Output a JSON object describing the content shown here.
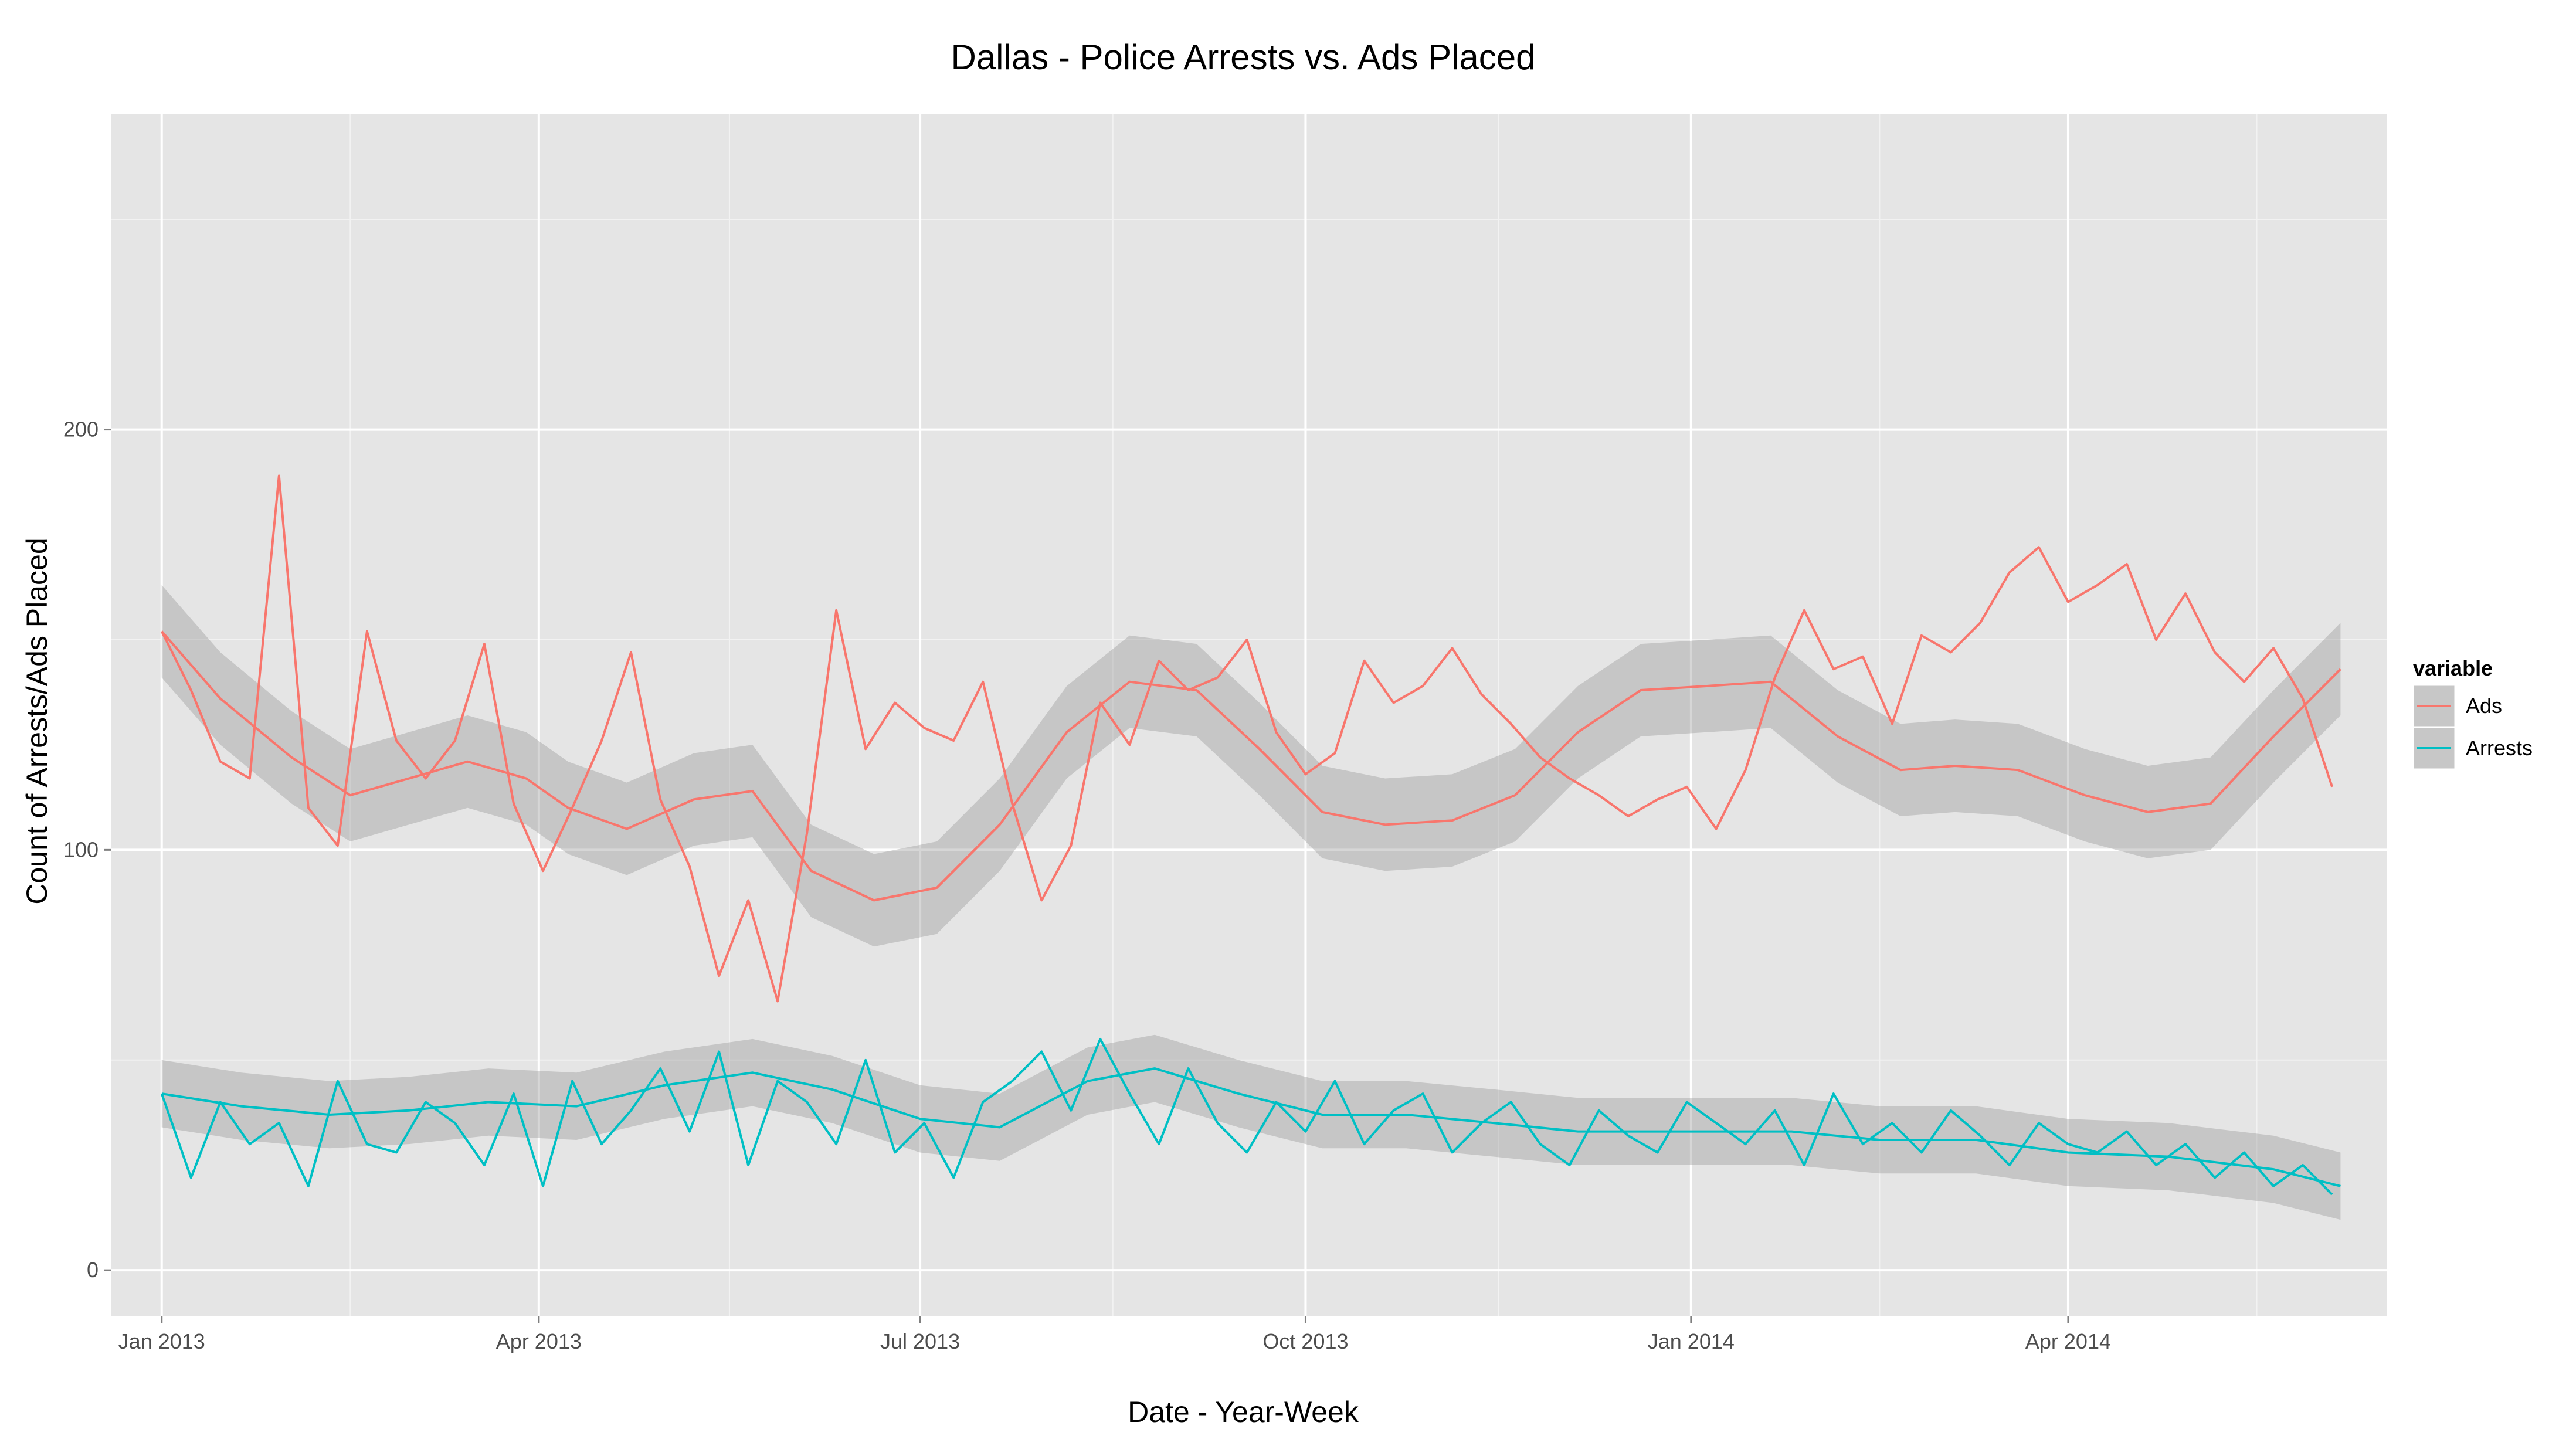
{
  "chart_data": {
    "type": "line",
    "title": "Dallas - Police Arrests vs. Ads Placed",
    "xlabel": "Date - Year-Week",
    "ylabel": "Count of Arrests/Ads Placed",
    "x_range": [
      "2012-12-20",
      "2014-06-16"
    ],
    "ylim": [
      -11,
      275
    ],
    "y_ticks": [
      0,
      100,
      200
    ],
    "x_ticks": [
      {
        "date": "2013-01-01",
        "label": "Jan 2013"
      },
      {
        "date": "2013-04-01",
        "label": "Apr 2013"
      },
      {
        "date": "2013-07-01",
        "label": "Jul 2013"
      },
      {
        "date": "2013-10-01",
        "label": "Oct 2013"
      },
      {
        "date": "2014-01-01",
        "label": "Jan 2014"
      },
      {
        "date": "2014-04-01",
        "label": "Apr 2014"
      }
    ],
    "grid": true,
    "background": "#e5e5e5",
    "smooth_band_color": "#999999",
    "legend": {
      "title": "variable",
      "placement": "right"
    },
    "series": [
      {
        "name": "Ads",
        "color": "#F8766D",
        "points": [
          [
            "2013-01-01",
            152
          ],
          [
            "2013-01-08",
            138
          ],
          [
            "2013-01-15",
            121
          ],
          [
            "2013-01-22",
            117
          ],
          [
            "2013-01-29",
            189
          ],
          [
            "2013-02-05",
            110
          ],
          [
            "2013-02-12",
            101
          ],
          [
            "2013-02-19",
            152
          ],
          [
            "2013-02-26",
            126
          ],
          [
            "2013-03-05",
            117
          ],
          [
            "2013-03-12",
            126
          ],
          [
            "2013-03-19",
            149
          ],
          [
            "2013-03-26",
            111
          ],
          [
            "2013-04-02",
            95
          ],
          [
            "2013-04-09",
            110
          ],
          [
            "2013-04-16",
            126
          ],
          [
            "2013-04-23",
            147
          ],
          [
            "2013-04-30",
            112
          ],
          [
            "2013-05-07",
            96
          ],
          [
            "2013-05-14",
            70
          ],
          [
            "2013-05-21",
            88
          ],
          [
            "2013-05-28",
            64
          ],
          [
            "2013-06-04",
            104
          ],
          [
            "2013-06-11",
            157
          ],
          [
            "2013-06-18",
            124
          ],
          [
            "2013-06-25",
            135
          ],
          [
            "2013-07-02",
            129
          ],
          [
            "2013-07-09",
            126
          ],
          [
            "2013-07-16",
            140
          ],
          [
            "2013-07-23",
            111
          ],
          [
            "2013-07-30",
            88
          ],
          [
            "2013-08-06",
            101
          ],
          [
            "2013-08-13",
            135
          ],
          [
            "2013-08-20",
            125
          ],
          [
            "2013-08-27",
            145
          ],
          [
            "2013-09-03",
            138
          ],
          [
            "2013-09-10",
            141
          ],
          [
            "2013-09-17",
            150
          ],
          [
            "2013-09-24",
            128
          ],
          [
            "2013-10-01",
            118
          ],
          [
            "2013-10-08",
            123
          ],
          [
            "2013-10-15",
            145
          ],
          [
            "2013-10-22",
            135
          ],
          [
            "2013-10-29",
            139
          ],
          [
            "2013-11-05",
            148
          ],
          [
            "2013-11-12",
            137
          ],
          [
            "2013-11-19",
            130
          ],
          [
            "2013-11-26",
            122
          ],
          [
            "2013-12-03",
            117
          ],
          [
            "2013-12-10",
            113
          ],
          [
            "2013-12-17",
            108
          ],
          [
            "2013-12-24",
            112
          ],
          [
            "2013-12-31",
            115
          ],
          [
            "2014-01-07",
            105
          ],
          [
            "2014-01-14",
            119
          ],
          [
            "2014-01-21",
            141
          ],
          [
            "2014-01-28",
            157
          ],
          [
            "2014-02-04",
            143
          ],
          [
            "2014-02-11",
            146
          ],
          [
            "2014-02-18",
            130
          ],
          [
            "2014-02-25",
            151
          ],
          [
            "2014-03-04",
            147
          ],
          [
            "2014-03-11",
            154
          ],
          [
            "2014-03-18",
            166
          ],
          [
            "2014-03-25",
            172
          ],
          [
            "2014-04-01",
            159
          ],
          [
            "2014-04-08",
            163
          ],
          [
            "2014-04-15",
            168
          ],
          [
            "2014-04-22",
            150
          ],
          [
            "2014-04-29",
            161
          ],
          [
            "2014-05-06",
            147
          ],
          [
            "2014-05-13",
            140
          ],
          [
            "2014-05-20",
            148
          ],
          [
            "2014-05-27",
            136
          ],
          [
            "2014-06-03",
            115
          ]
        ],
        "smooth": [
          [
            "2013-01-01",
            152
          ],
          [
            "2013-01-15",
            136
          ],
          [
            "2013-02-01",
            122
          ],
          [
            "2013-02-15",
            113
          ],
          [
            "2013-03-01",
            117
          ],
          [
            "2013-03-15",
            121
          ],
          [
            "2013-03-29",
            117
          ],
          [
            "2013-04-08",
            110
          ],
          [
            "2013-04-22",
            105
          ],
          [
            "2013-05-08",
            112
          ],
          [
            "2013-05-22",
            114
          ],
          [
            "2013-06-05",
            95
          ],
          [
            "2013-06-20",
            88
          ],
          [
            "2013-07-05",
            91
          ],
          [
            "2013-07-20",
            106
          ],
          [
            "2013-08-05",
            128
          ],
          [
            "2013-08-20",
            140
          ],
          [
            "2013-09-05",
            138
          ],
          [
            "2013-09-20",
            124
          ],
          [
            "2013-10-05",
            109
          ],
          [
            "2013-10-20",
            106
          ],
          [
            "2013-11-05",
            107
          ],
          [
            "2013-11-20",
            113
          ],
          [
            "2013-12-05",
            128
          ],
          [
            "2013-12-20",
            138
          ],
          [
            "2014-01-05",
            139
          ],
          [
            "2014-01-20",
            140
          ],
          [
            "2014-02-05",
            127
          ],
          [
            "2014-02-20",
            119
          ],
          [
            "2014-03-05",
            120
          ],
          [
            "2014-03-20",
            119
          ],
          [
            "2014-04-05",
            113
          ],
          [
            "2014-04-20",
            109
          ],
          [
            "2014-05-05",
            111
          ],
          [
            "2014-05-20",
            127
          ],
          [
            "2014-06-05",
            143
          ]
        ],
        "band_halfwidth": 11
      },
      {
        "name": "Arrests",
        "color": "#00BFC4",
        "points": [
          [
            "2013-01-01",
            42
          ],
          [
            "2013-01-08",
            22
          ],
          [
            "2013-01-15",
            40
          ],
          [
            "2013-01-22",
            30
          ],
          [
            "2013-01-29",
            35
          ],
          [
            "2013-02-05",
            20
          ],
          [
            "2013-02-12",
            45
          ],
          [
            "2013-02-19",
            30
          ],
          [
            "2013-02-26",
            28
          ],
          [
            "2013-03-05",
            40
          ],
          [
            "2013-03-12",
            35
          ],
          [
            "2013-03-19",
            25
          ],
          [
            "2013-03-26",
            42
          ],
          [
            "2013-04-02",
            20
          ],
          [
            "2013-04-09",
            45
          ],
          [
            "2013-04-16",
            30
          ],
          [
            "2013-04-23",
            38
          ],
          [
            "2013-04-30",
            48
          ],
          [
            "2013-05-07",
            33
          ],
          [
            "2013-05-14",
            52
          ],
          [
            "2013-05-21",
            25
          ],
          [
            "2013-05-28",
            45
          ],
          [
            "2013-06-04",
            40
          ],
          [
            "2013-06-11",
            30
          ],
          [
            "2013-06-18",
            50
          ],
          [
            "2013-06-25",
            28
          ],
          [
            "2013-07-02",
            35
          ],
          [
            "2013-07-09",
            22
          ],
          [
            "2013-07-16",
            40
          ],
          [
            "2013-07-23",
            45
          ],
          [
            "2013-07-30",
            52
          ],
          [
            "2013-08-06",
            38
          ],
          [
            "2013-08-13",
            55
          ],
          [
            "2013-08-20",
            42
          ],
          [
            "2013-08-27",
            30
          ],
          [
            "2013-09-03",
            48
          ],
          [
            "2013-09-10",
            35
          ],
          [
            "2013-09-17",
            28
          ],
          [
            "2013-09-24",
            40
          ],
          [
            "2013-10-01",
            33
          ],
          [
            "2013-10-08",
            45
          ],
          [
            "2013-10-15",
            30
          ],
          [
            "2013-10-22",
            38
          ],
          [
            "2013-10-29",
            42
          ],
          [
            "2013-11-05",
            28
          ],
          [
            "2013-11-12",
            35
          ],
          [
            "2013-11-19",
            40
          ],
          [
            "2013-11-26",
            30
          ],
          [
            "2013-12-03",
            25
          ],
          [
            "2013-12-10",
            38
          ],
          [
            "2013-12-17",
            32
          ],
          [
            "2013-12-24",
            28
          ],
          [
            "2013-12-31",
            40
          ],
          [
            "2014-01-07",
            35
          ],
          [
            "2014-01-14",
            30
          ],
          [
            "2014-01-21",
            38
          ],
          [
            "2014-01-28",
            25
          ],
          [
            "2014-02-04",
            42
          ],
          [
            "2014-02-11",
            30
          ],
          [
            "2014-02-18",
            35
          ],
          [
            "2014-02-25",
            28
          ],
          [
            "2014-03-04",
            38
          ],
          [
            "2014-03-11",
            32
          ],
          [
            "2014-03-18",
            25
          ],
          [
            "2014-03-25",
            35
          ],
          [
            "2014-04-01",
            30
          ],
          [
            "2014-04-08",
            28
          ],
          [
            "2014-04-15",
            33
          ],
          [
            "2014-04-22",
            25
          ],
          [
            "2014-04-29",
            30
          ],
          [
            "2014-05-06",
            22
          ],
          [
            "2014-05-13",
            28
          ],
          [
            "2014-05-20",
            20
          ],
          [
            "2014-05-27",
            25
          ],
          [
            "2014-06-03",
            18
          ]
        ],
        "smooth": [
          [
            "2013-01-01",
            42
          ],
          [
            "2013-01-20",
            39
          ],
          [
            "2013-02-10",
            37
          ],
          [
            "2013-03-01",
            38
          ],
          [
            "2013-03-20",
            40
          ],
          [
            "2013-04-10",
            39
          ],
          [
            "2013-05-01",
            44
          ],
          [
            "2013-05-22",
            47
          ],
          [
            "2013-06-10",
            43
          ],
          [
            "2013-07-01",
            36
          ],
          [
            "2013-07-20",
            34
          ],
          [
            "2013-08-10",
            45
          ],
          [
            "2013-08-26",
            48
          ],
          [
            "2013-09-15",
            42
          ],
          [
            "2013-10-05",
            37
          ],
          [
            "2013-10-25",
            37
          ],
          [
            "2013-11-15",
            35
          ],
          [
            "2013-12-05",
            33
          ],
          [
            "2014-01-01",
            33
          ],
          [
            "2014-01-25",
            33
          ],
          [
            "2014-02-15",
            31
          ],
          [
            "2014-03-10",
            31
          ],
          [
            "2014-04-01",
            28
          ],
          [
            "2014-04-25",
            27
          ],
          [
            "2014-05-20",
            24
          ],
          [
            "2014-06-05",
            20
          ]
        ],
        "band_halfwidth": 8
      }
    ]
  }
}
